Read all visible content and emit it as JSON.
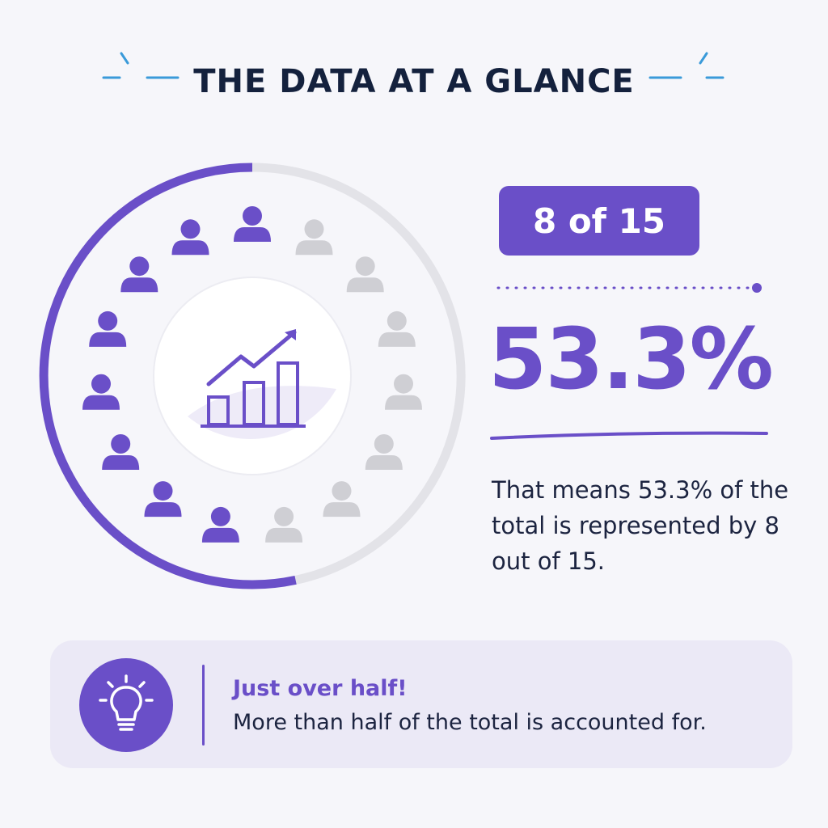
{
  "title": "THE DATA AT A GLANCE",
  "badge": {
    "text": "8 of 15"
  },
  "stat": {
    "percent_text": "53.3%",
    "description": "That means 53.3% of the total is represented by 8 out of 15."
  },
  "note": {
    "icon": "lightbulb-icon",
    "heading": "Just over half!",
    "text": "More than half of the total is accounted for."
  },
  "chart_data": {
    "type": "pictograph",
    "total": 15,
    "highlighted": 8,
    "fraction": 0.533,
    "center_icon": "bar-chart-trend-icon",
    "person_icon": "person-icon"
  },
  "colors": {
    "accent": "#6a4fc8",
    "inactive": "#cfcfd4",
    "title": "#14213d",
    "text": "#1c2440",
    "deco": "#3a9ad9"
  }
}
